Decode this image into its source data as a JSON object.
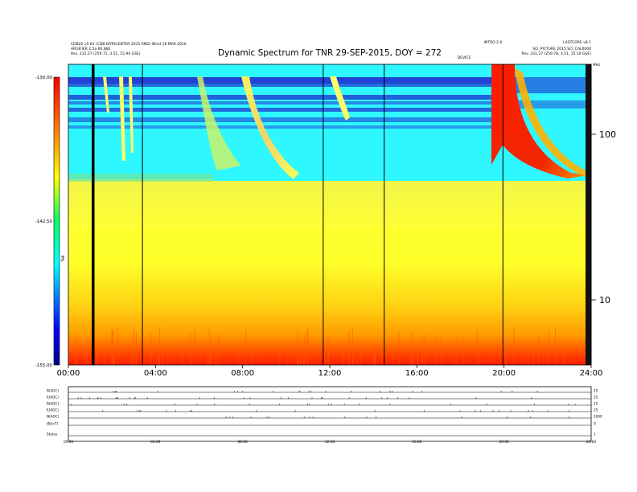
{
  "header": {
    "title": "Dynamic Spectrum for TNR 29-SEP-2015, DOY = 272",
    "left_line1": "CDB22 v5.01 (CDB DATACENTER 2015 RND)  Wind  16 MAR 2016",
    "left_line2": "ARGIFIER 2.5a 60.882",
    "left_line3": "Rev.   231.27 (259.71, 3.51, 15.94 GSE)",
    "right_line1": "LASTCORE v8.1",
    "right_line2": "SCI_PICTURE 2015 SCI_CAL0000",
    "right_line3": "Rev.   231.27 (259.78, 3.51, 15.10 GSE)",
    "mid_label1": "INTRO 2.0",
    "mid_label2": "DEVICE"
  },
  "colorbar": {
    "top": "-130.00",
    "mid": "-142.50",
    "bottom": "-155.00",
    "label": "TNR"
  },
  "right_axis": {
    "ticks": [
      "100",
      "10"
    ],
    "top_label": "MHz"
  },
  "chart_data": {
    "type": "heatmap",
    "title": "Dynamic Spectrum for TNR 29-SEP-2015, DOY = 272",
    "x_ticks": [
      "00:00",
      "04:00",
      "08:00",
      "12:00",
      "16:00",
      "20:00",
      "24:00"
    ],
    "x_range_hours": [
      0,
      24
    ],
    "y_scale": "log",
    "y_ticks": [
      100,
      10
    ],
    "color_scale": {
      "min": -155.0,
      "max": -130.0,
      "colors": [
        "#00008c",
        "#0000ff",
        "#00ffff",
        "#00ff00",
        "#ffff00",
        "#ff0000",
        "#c80000"
      ]
    },
    "vertical_lines_hours": [
      1.18,
      3.4,
      11.7,
      14.5,
      19.95
    ],
    "events": [
      {
        "type": "type III burst",
        "start_hour": 6.3,
        "end_hour": 10.0
      },
      {
        "type": "type III burst",
        "start_hour": 4.8,
        "end_hour": 8.0
      },
      {
        "type": "intense burst",
        "start_hour": 19.3,
        "end_hour": 22.0
      }
    ]
  },
  "bottom_panels": {
    "labels": [
      "B(AGC)",
      "E(AGC)",
      "B(AGC)",
      "E(AGC)",
      "N(AGC)",
      "|B|(nT)",
      "Status"
    ],
    "x_ticks": [
      "00:00",
      "04:00",
      "08:00",
      "12:00",
      "16:00",
      "20:00",
      "24:00"
    ],
    "right_ticks": [
      "25",
      "25",
      "25",
      "25",
      "1000",
      "0",
      "1"
    ]
  },
  "colors": {
    "cyan": "#00ffff",
    "blue": "#2020d8",
    "green": "#7fe27f",
    "yellow": "#ffff33",
    "orange": "#ff9900",
    "red": "#ff1a00"
  }
}
